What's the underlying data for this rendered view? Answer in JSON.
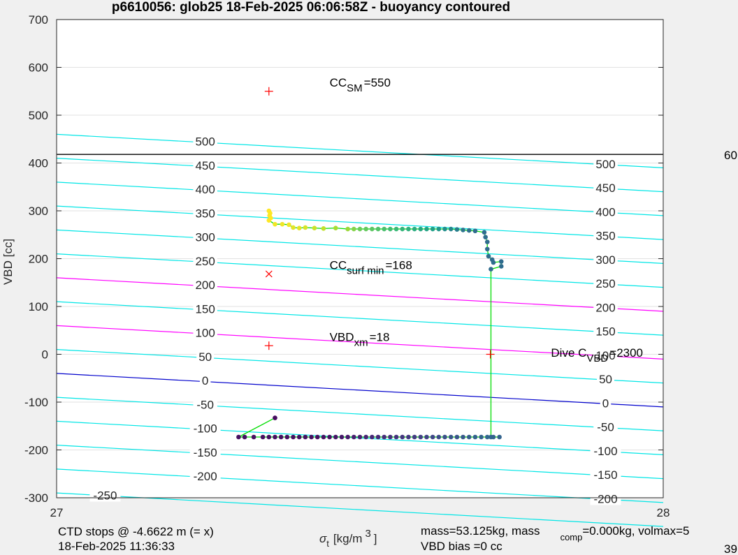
{
  "chart_data": {
    "type": "scatter",
    "title": "p6610056: glob25 18-Feb-2025 06:06:58Z - buoyancy contoured",
    "xlabel": "σ",
    "xlabel_sub": "t",
    "xlabel_unit": "[kg/m",
    "xlabel_sup": "3",
    "xlabel_close": "]",
    "ylabel": "VBD [cc]",
    "xlim": [
      27,
      28
    ],
    "ylim": [
      -300,
      700
    ],
    "xticks": [
      "27",
      "28"
    ],
    "yticks": [
      "700",
      "600",
      "500",
      "400",
      "300",
      "200",
      "100",
      "0",
      "-100",
      "-200",
      "-300"
    ],
    "plot_background": "#ffffff",
    "grid": true,
    "colors": {
      "contour": "#00e6e6",
      "highlight_contour": "#ff00ff",
      "zero_contour": "#0000cc",
      "reference_line": "#000000",
      "marker": "#ff0000",
      "trace": "#00dd00"
    },
    "contours": [
      {
        "level": 500,
        "y0": 460,
        "slope": -70
      },
      {
        "level": 450,
        "y0": 410,
        "slope": -70
      },
      {
        "level": 400,
        "y0": 360,
        "slope": -70
      },
      {
        "level": 350,
        "y0": 310,
        "slope": -70
      },
      {
        "level": 300,
        "y0": 260,
        "slope": -70
      },
      {
        "level": 250,
        "y0": 210,
        "slope": -70
      },
      {
        "level": 200,
        "y0": 160,
        "slope": -70,
        "highlight": true
      },
      {
        "level": 150,
        "y0": 110,
        "slope": -70
      },
      {
        "level": 100,
        "y0": 60,
        "slope": -70,
        "highlight": true
      },
      {
        "level": 50,
        "y0": 10,
        "slope": -70
      },
      {
        "level": 0,
        "y0": -40,
        "slope": -70,
        "zero": true
      },
      {
        "level": -50,
        "y0": -90,
        "slope": -70
      },
      {
        "level": -100,
        "y0": -140,
        "slope": -70
      },
      {
        "level": -150,
        "y0": -190,
        "slope": -70
      },
      {
        "level": -200,
        "y0": -240,
        "slope": -70
      },
      {
        "level": -250,
        "y0": -290,
        "slope": -70
      }
    ],
    "contour_labels_left": [
      {
        "text": "500",
        "x": 27.245,
        "y": 445
      },
      {
        "text": "450",
        "x": 27.245,
        "y": 395
      },
      {
        "text": "400",
        "x": 27.245,
        "y": 345
      },
      {
        "text": "350",
        "x": 27.245,
        "y": 295
      },
      {
        "text": "300",
        "x": 27.245,
        "y": 245
      },
      {
        "text": "250",
        "x": 27.245,
        "y": 195
      },
      {
        "text": "200",
        "x": 27.245,
        "y": 145
      },
      {
        "text": "150",
        "x": 27.245,
        "y": 95
      },
      {
        "text": "100",
        "x": 27.245,
        "y": 45
      },
      {
        "text": "50",
        "x": 27.245,
        "y": -5
      },
      {
        "text": "0",
        "x": 27.245,
        "y": -55
      },
      {
        "text": "-50",
        "x": 27.245,
        "y": -105
      },
      {
        "text": "-100",
        "x": 27.245,
        "y": -155
      },
      {
        "text": "-150",
        "x": 27.245,
        "y": -205
      },
      {
        "text": "-200",
        "x": 27.245,
        "y": -255
      },
      {
        "text": "-250",
        "x": 27.08,
        "y": -295
      }
    ],
    "contour_labels_right": [
      {
        "text": "500",
        "x": 27.905,
        "y": 398
      },
      {
        "text": "450",
        "x": 27.905,
        "y": 348
      },
      {
        "text": "400",
        "x": 27.905,
        "y": 298
      },
      {
        "text": "350",
        "x": 27.905,
        "y": 248
      },
      {
        "text": "300",
        "x": 27.905,
        "y": 198
      },
      {
        "text": "250",
        "x": 27.905,
        "y": 148
      },
      {
        "text": "200",
        "x": 27.905,
        "y": 98
      },
      {
        "text": "150",
        "x": 27.905,
        "y": 48
      },
      {
        "text": "100",
        "x": 27.905,
        "y": -2
      },
      {
        "text": "50",
        "x": 27.905,
        "y": -52
      },
      {
        "text": "0",
        "x": 27.905,
        "y": -102
      },
      {
        "text": "-50",
        "x": 27.905,
        "y": -152
      },
      {
        "text": "-100",
        "x": 27.905,
        "y": -202
      },
      {
        "text": "-150",
        "x": 27.905,
        "y": -252
      },
      {
        "text": "-200",
        "x": 27.905,
        "y": -302
      }
    ],
    "reference_line_y": 418,
    "markers": [
      {
        "x": 27.35,
        "y": 550,
        "symbol": "+"
      },
      {
        "x": 27.35,
        "y": 168,
        "symbol": "x"
      },
      {
        "x": 27.35,
        "y": 18,
        "symbol": "+"
      },
      {
        "x": 27.715,
        "y": 0,
        "symbol": "+"
      }
    ],
    "annotations": [
      {
        "main": "CC",
        "sub": "SM",
        "value": "=550",
        "x": 27.45,
        "y": 560
      },
      {
        "main": "CC",
        "sub": "surf min",
        "value": "=168",
        "x": 27.45,
        "y": 178
      },
      {
        "main": "VBD",
        "sub": "xm",
        "value": "=18",
        "x": 27.45,
        "y": 28
      },
      {
        "main": "Dive C",
        "sub": "VBD",
        "value": "=2300",
        "x": 27.815,
        "y": -5
      }
    ],
    "right_stub": "60",
    "series": [
      {
        "values": [
          [
            27.35,
            300,
            1.0
          ],
          [
            27.352,
            295,
            1.0
          ],
          [
            27.351,
            290,
            1.0
          ],
          [
            27.353,
            285,
            1.0
          ],
          [
            27.35,
            280,
            1.0
          ],
          [
            27.36,
            272,
            0.99
          ],
          [
            27.372,
            272,
            0.99
          ],
          [
            27.383,
            271,
            0.99
          ],
          [
            27.39,
            265,
            0.98
          ],
          [
            27.4,
            264,
            0.98
          ],
          [
            27.41,
            265,
            0.97
          ],
          [
            27.425,
            264,
            0.96
          ],
          [
            27.44,
            263,
            0.95
          ],
          [
            27.46,
            264,
            0.93
          ],
          [
            27.48,
            262,
            0.92
          ],
          [
            27.49,
            262,
            0.9
          ],
          [
            27.5,
            262,
            0.88
          ],
          [
            27.51,
            262,
            0.86
          ],
          [
            27.52,
            262,
            0.84
          ],
          [
            27.53,
            262,
            0.82
          ],
          [
            27.54,
            262,
            0.8
          ],
          [
            27.55,
            262,
            0.78
          ],
          [
            27.56,
            262,
            0.76
          ],
          [
            27.57,
            262,
            0.74
          ],
          [
            27.58,
            262,
            0.72
          ],
          [
            27.59,
            262,
            0.7
          ],
          [
            27.6,
            262,
            0.68
          ],
          [
            27.61,
            262,
            0.66
          ],
          [
            27.62,
            262,
            0.64
          ],
          [
            27.63,
            262,
            0.6
          ],
          [
            27.64,
            262,
            0.56
          ],
          [
            27.65,
            262,
            0.52
          ],
          [
            27.66,
            261,
            0.48
          ],
          [
            27.67,
            260,
            0.44
          ],
          [
            27.68,
            259,
            0.42
          ],
          [
            27.69,
            258,
            0.4
          ],
          [
            27.705,
            255,
            0.4
          ],
          [
            27.707,
            245,
            0.4
          ],
          [
            27.71,
            235,
            0.4
          ],
          [
            27.71,
            220,
            0.4
          ],
          [
            27.712,
            205,
            0.4
          ],
          [
            27.718,
            198,
            0.4
          ],
          [
            27.72,
            192,
            0.4
          ],
          [
            27.733,
            194,
            0.4
          ],
          [
            27.733,
            184,
            0.4
          ],
          [
            27.716,
            178,
            0.4
          ],
          [
            27.716,
            -173,
            0.38
          ],
          [
            27.72,
            -173,
            0.36
          ],
          [
            27.73,
            -173,
            0.36
          ],
          [
            27.71,
            -173,
            0.38
          ],
          [
            27.7,
            -173,
            0.36
          ],
          [
            27.69,
            -173,
            0.36
          ],
          [
            27.68,
            -173,
            0.34
          ],
          [
            27.67,
            -173,
            0.32
          ],
          [
            27.66,
            -173,
            0.3
          ],
          [
            27.65,
            -173,
            0.3
          ],
          [
            27.64,
            -173,
            0.28
          ],
          [
            27.63,
            -173,
            0.26
          ],
          [
            27.62,
            -173,
            0.24
          ],
          [
            27.61,
            -173,
            0.23
          ],
          [
            27.6,
            -173,
            0.22
          ],
          [
            27.59,
            -173,
            0.2
          ],
          [
            27.58,
            -173,
            0.19
          ],
          [
            27.57,
            -173,
            0.18
          ],
          [
            27.56,
            -173,
            0.17
          ],
          [
            27.55,
            -173,
            0.16
          ],
          [
            27.54,
            -173,
            0.15
          ],
          [
            27.53,
            -173,
            0.14
          ],
          [
            27.52,
            -173,
            0.13
          ],
          [
            27.51,
            -173,
            0.12
          ],
          [
            27.5,
            -173,
            0.11
          ],
          [
            27.49,
            -173,
            0.1
          ],
          [
            27.48,
            -173,
            0.09
          ],
          [
            27.47,
            -173,
            0.08
          ],
          [
            27.46,
            -173,
            0.07
          ],
          [
            27.45,
            -173,
            0.06
          ],
          [
            27.44,
            -173,
            0.06
          ],
          [
            27.43,
            -173,
            0.05
          ],
          [
            27.42,
            -173,
            0.05
          ],
          [
            27.41,
            -173,
            0.05
          ],
          [
            27.4,
            -173,
            0.05
          ],
          [
            27.39,
            -173,
            0.05
          ],
          [
            27.38,
            -173,
            0.05
          ],
          [
            27.37,
            -173,
            0.05
          ],
          [
            27.36,
            -173,
            0.05
          ],
          [
            27.35,
            -173,
            0.05
          ],
          [
            27.34,
            -173,
            0.05
          ],
          [
            27.325,
            -173,
            0.05
          ],
          [
            27.31,
            -173,
            0.05
          ],
          [
            27.3,
            -173,
            0.05
          ],
          [
            27.36,
            -133,
            0.04
          ]
        ]
      }
    ]
  },
  "footer": {
    "ctd_line1": "CTD stops @ -4.6622 m (= x)",
    "ctd_line2": "18-Feb-2025 11:36:33",
    "mass_line1_a": "mass=53.125kg, mass",
    "mass_line1_sub": "comp",
    "mass_line1_b": "=0.000kg, volmax=5",
    "mass_line2": "VBD bias =0 cc",
    "corner_stub": "39"
  }
}
